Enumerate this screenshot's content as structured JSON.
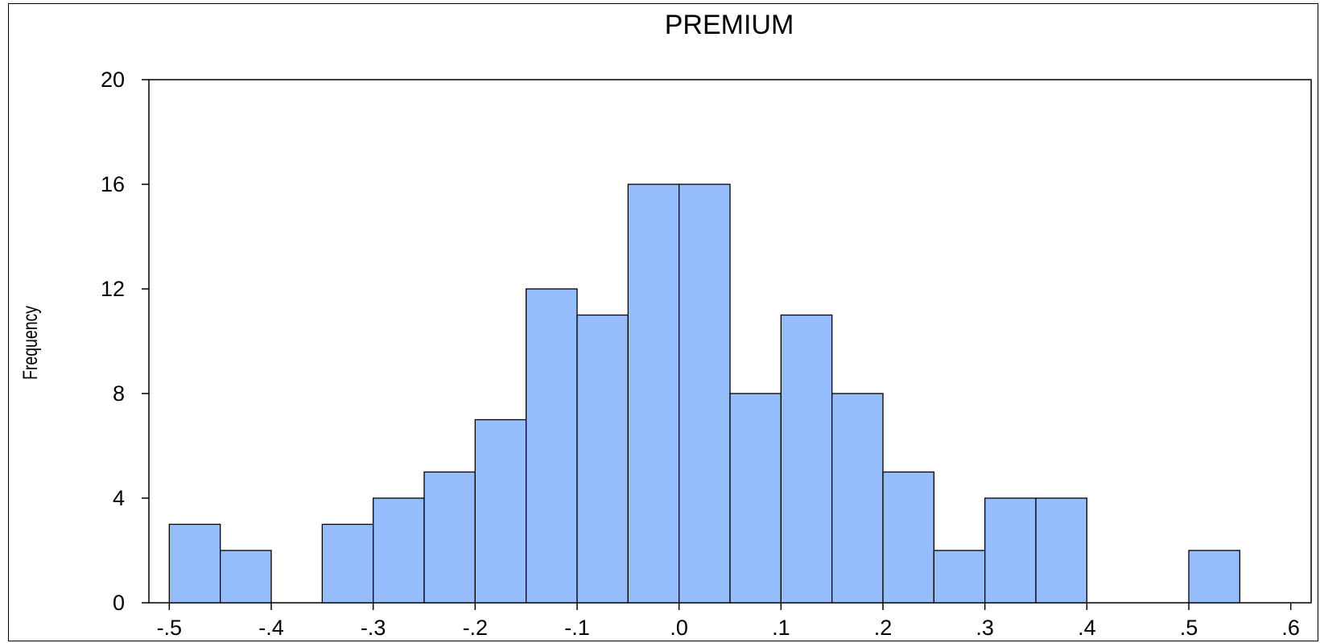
{
  "chart_data": {
    "type": "bar",
    "title": "PREMIUM",
    "xlabel": "",
    "ylabel": "Frequency",
    "xlim": [
      -0.52,
      0.62
    ],
    "ylim": [
      0,
      20
    ],
    "grid": false,
    "bin_width": 0.05,
    "bins": [
      {
        "start": -0.5,
        "count": 3
      },
      {
        "start": -0.45,
        "count": 2
      },
      {
        "start": -0.35,
        "count": 3
      },
      {
        "start": -0.3,
        "count": 4
      },
      {
        "start": -0.25,
        "count": 5
      },
      {
        "start": -0.2,
        "count": 7
      },
      {
        "start": -0.15,
        "count": 12
      },
      {
        "start": -0.1,
        "count": 11
      },
      {
        "start": -0.05,
        "count": 16
      },
      {
        "start": 0.0,
        "count": 16
      },
      {
        "start": 0.05,
        "count": 8
      },
      {
        "start": 0.1,
        "count": 11
      },
      {
        "start": 0.15,
        "count": 8
      },
      {
        "start": 0.2,
        "count": 5
      },
      {
        "start": 0.25,
        "count": 2
      },
      {
        "start": 0.3,
        "count": 4
      },
      {
        "start": 0.35,
        "count": 4
      },
      {
        "start": 0.5,
        "count": 2
      }
    ],
    "x_ticks": [
      {
        "value": -0.5,
        "label": "-.5"
      },
      {
        "value": -0.4,
        "label": "-.4"
      },
      {
        "value": -0.3,
        "label": "-.3"
      },
      {
        "value": -0.2,
        "label": "-.2"
      },
      {
        "value": -0.1,
        "label": "-.1"
      },
      {
        "value": 0.0,
        "label": ".0"
      },
      {
        "value": 0.1,
        "label": ".1"
      },
      {
        "value": 0.2,
        "label": ".2"
      },
      {
        "value": 0.3,
        "label": ".3"
      },
      {
        "value": 0.4,
        "label": ".4"
      },
      {
        "value": 0.5,
        "label": ".5"
      },
      {
        "value": 0.6,
        "label": ".6"
      }
    ],
    "y_ticks": [
      {
        "value": 0,
        "label": "0"
      },
      {
        "value": 4,
        "label": "4"
      },
      {
        "value": 8,
        "label": "8"
      },
      {
        "value": 12,
        "label": "12"
      },
      {
        "value": 16,
        "label": "16"
      },
      {
        "value": 20,
        "label": "20"
      }
    ],
    "colors": {
      "bar_fill": "#96bdfb",
      "bar_edge": "#000000"
    }
  }
}
